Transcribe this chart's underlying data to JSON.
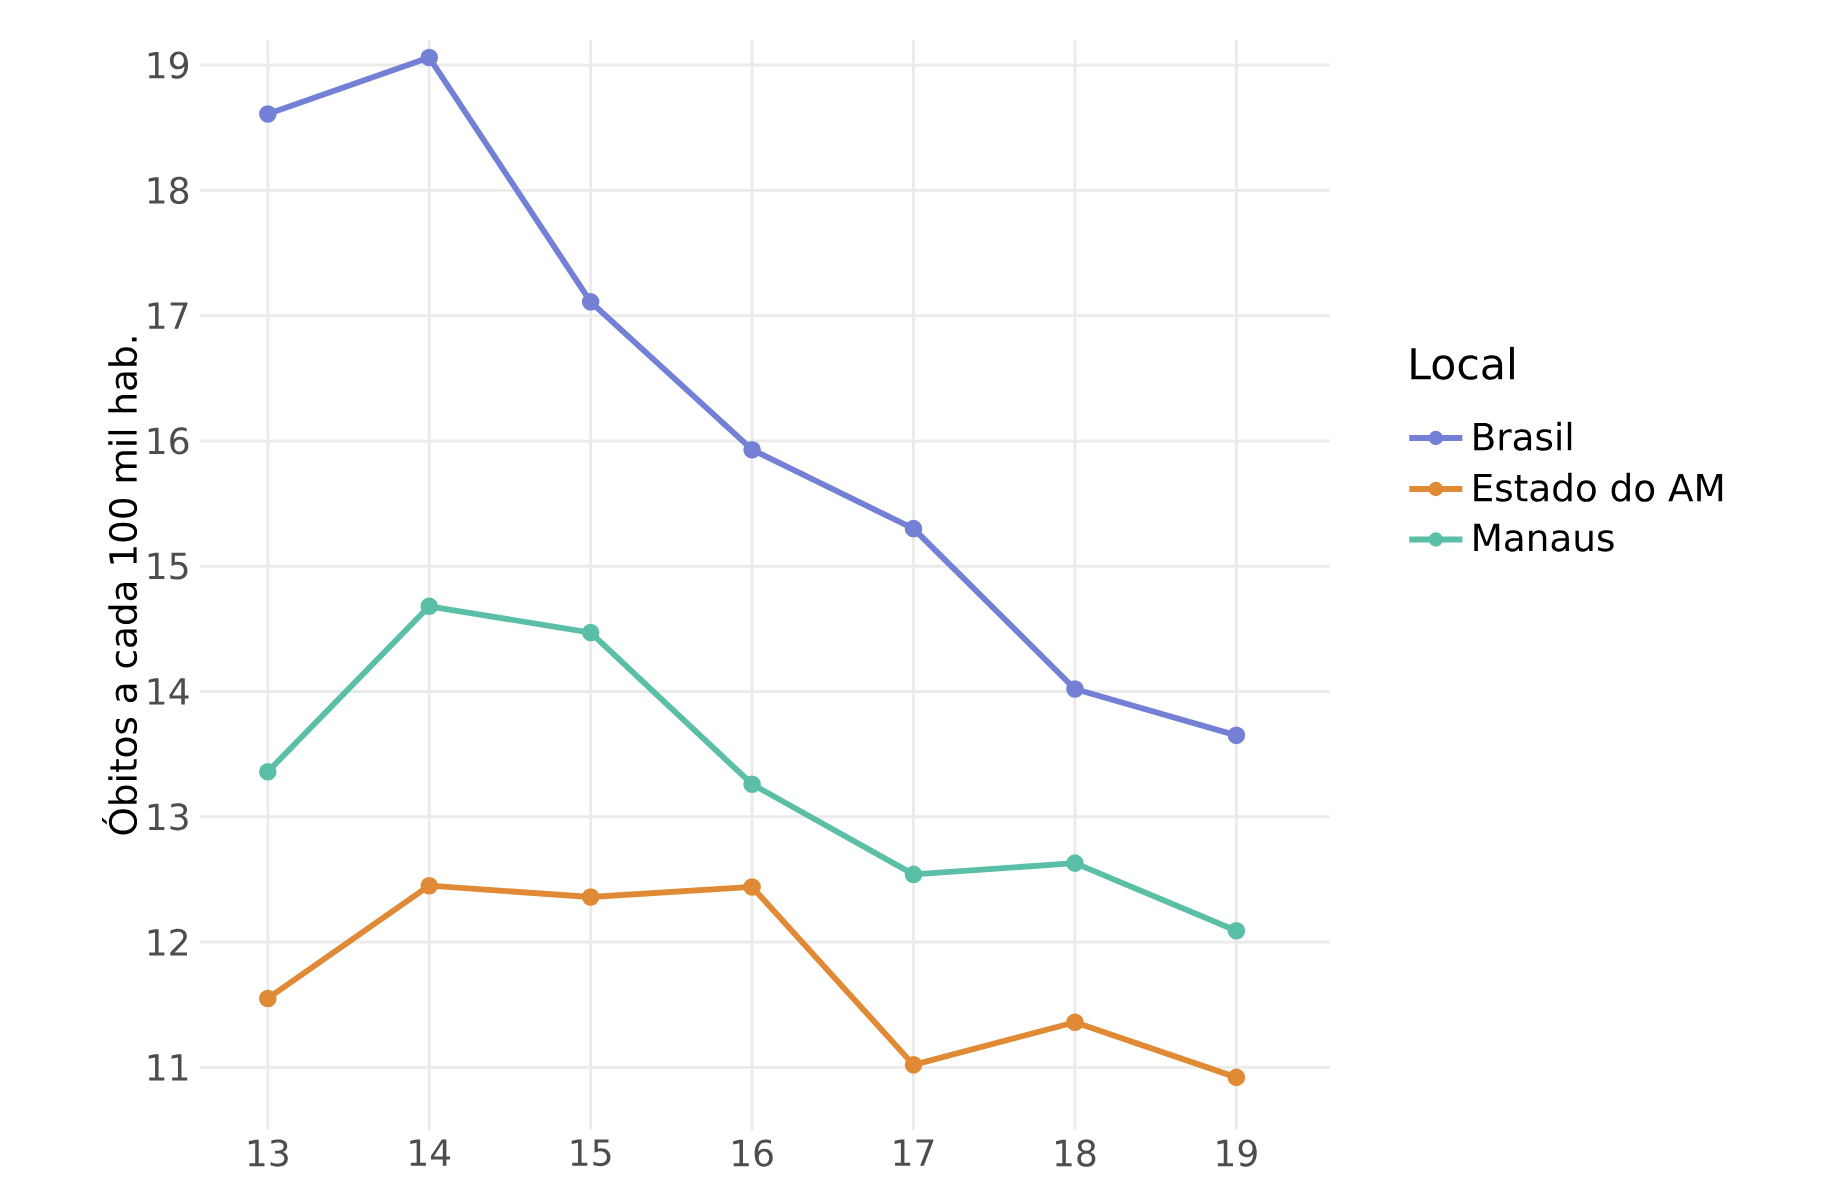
{
  "chart_data": {
    "type": "line",
    "ylabel": "Óbitos a cada 100 mil hab.",
    "legend_title": "Local",
    "x": [
      13,
      14,
      15,
      16,
      17,
      18,
      19
    ],
    "series": [
      {
        "name": "Brasil",
        "color": "#7480d6",
        "values": [
          18.61,
          19.06,
          17.11,
          15.93,
          15.3,
          14.02,
          13.65
        ]
      },
      {
        "name": "Estado do AM",
        "color": "#e08a35",
        "values": [
          11.55,
          12.45,
          12.36,
          12.44,
          11.02,
          11.36,
          10.92
        ]
      },
      {
        "name": "Manaus",
        "color": "#5bbfa8",
        "values": [
          13.36,
          14.68,
          14.47,
          13.26,
          12.54,
          12.63,
          12.09
        ]
      }
    ],
    "xlim": [
      12.58,
      19.58
    ],
    "ylim": [
      10.5,
      19.2
    ],
    "xticks": [
      13,
      14,
      15,
      16,
      17,
      18,
      19
    ],
    "yticks": [
      11,
      12,
      13,
      14,
      15,
      16,
      17,
      18,
      19
    ],
    "grid": true,
    "legend": "right",
    "marker": "circle",
    "line_style": "solid"
  }
}
